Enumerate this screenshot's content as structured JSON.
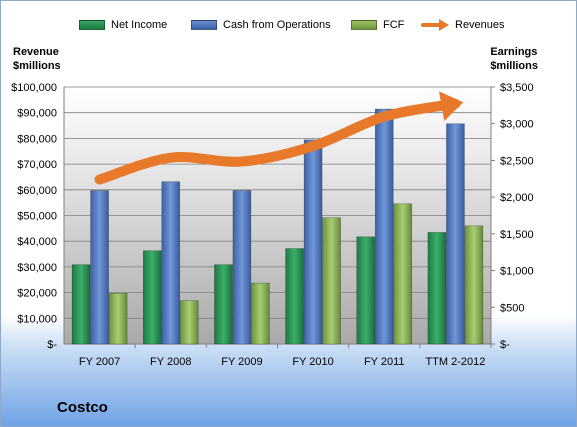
{
  "chart_data": {
    "type": "bar",
    "title": "Costco",
    "categories": [
      "FY 2007",
      "FY 2008",
      "FY 2009",
      "FY 2010",
      "FY 2011",
      "TTM 2-2012"
    ],
    "left_axis_label": "Revenue\n$millions",
    "right_axis_label": "Earnings\n$millions",
    "left_ylim": [
      0,
      100000
    ],
    "right_ylim": [
      0,
      3500
    ],
    "left_ticks": [
      "$-",
      "$10,000",
      "$20,000",
      "$30,000",
      "$40,000",
      "$50,000",
      "$60,000",
      "$70,000",
      "$80,000",
      "$90,000",
      "$100,000"
    ],
    "right_ticks": [
      "$-",
      "$500",
      "$1,000",
      "$1,500",
      "$2,000",
      "$2,500",
      "$3,000",
      "$3,500"
    ],
    "series": [
      {
        "name": "Net Income",
        "axis": "right",
        "kind": "bar",
        "color": "#1f8a4c",
        "values": [
          1080,
          1270,
          1080,
          1300,
          1460,
          1520
        ]
      },
      {
        "name": "Cash from Operations",
        "axis": "right",
        "kind": "bar",
        "color": "#4a72b8",
        "values": [
          2090,
          2210,
          2090,
          2780,
          3200,
          3000
        ]
      },
      {
        "name": "FCF",
        "axis": "right",
        "kind": "bar",
        "color": "#7fa64a",
        "values": [
          690,
          590,
          830,
          1720,
          1910,
          1610
        ]
      },
      {
        "name": "Revenues",
        "axis": "left",
        "kind": "arrow",
        "color": "#e8782a",
        "values": [
          64000,
          72500,
          71000,
          77000,
          88500,
          93500
        ]
      }
    ],
    "grid": true,
    "legend_position": "top"
  }
}
